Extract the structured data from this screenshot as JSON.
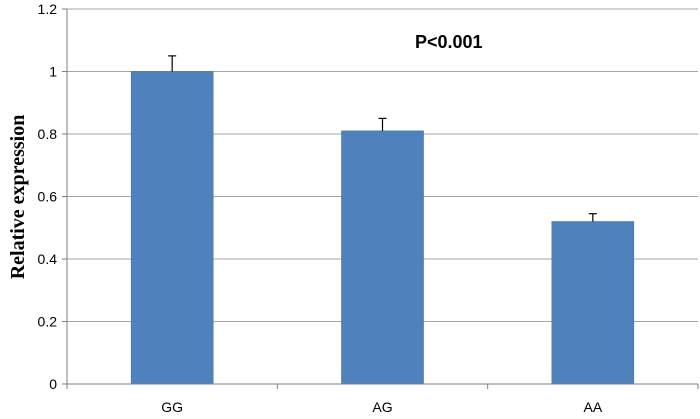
{
  "chart_data": {
    "type": "bar",
    "title": "",
    "xlabel": "",
    "ylabel": "Relative expression",
    "categories": [
      "GG",
      "AG",
      "AA"
    ],
    "values": [
      1.0,
      0.81,
      0.52
    ],
    "errors": [
      0.05,
      0.04,
      0.025
    ],
    "ylim": [
      0,
      1.2
    ],
    "yticks": [
      "0",
      "0.2",
      "0.4",
      "0.6",
      "0.8",
      "1",
      "1.2"
    ],
    "ytick_values": [
      0,
      0.2,
      0.4,
      0.6,
      0.8,
      1.0,
      1.2
    ],
    "grid": true,
    "legend": "none",
    "annotation": "P<0.001",
    "colors": {
      "bar": "#4f81bd",
      "bar_edge": "#3a6aa3",
      "grid": "#a6a6a6",
      "axis": "#7f7f7f",
      "error_bar": "#000000"
    }
  }
}
